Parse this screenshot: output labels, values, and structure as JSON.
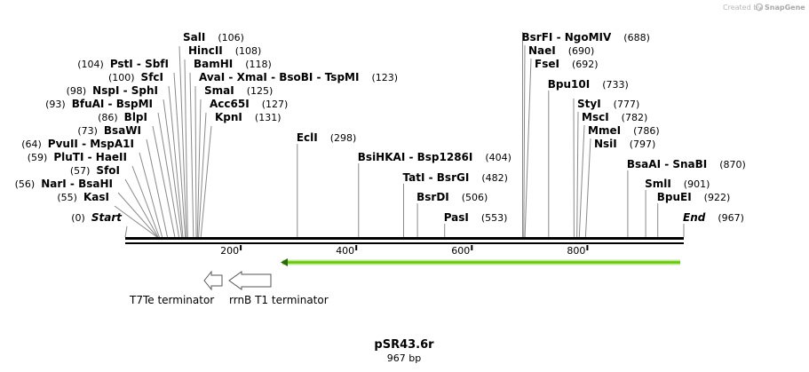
{
  "credit": {
    "prefix": "Created by",
    "brand": "SnapGene"
  },
  "plasmid": {
    "name": "pSR43.6r",
    "length_label": "967 bp",
    "length_bp": 967
  },
  "scale": {
    "ticks": [
      200,
      400,
      600,
      800
    ]
  },
  "cut_sites": [
    {
      "name": "Start",
      "pos": 0,
      "italic": true
    },
    {
      "name": "KasI",
      "pos": 55
    },
    {
      "name": "NarI  - BsaHI",
      "pos": 56
    },
    {
      "name": "SfoI",
      "pos": 57
    },
    {
      "name": "PluTI  - HaeII",
      "pos": 59
    },
    {
      "name": "PvuII  - MspA1I",
      "pos": 64
    },
    {
      "name": "BsaWI",
      "pos": 73
    },
    {
      "name": "BlpI",
      "pos": 86
    },
    {
      "name": "BfuAI  - BspMI",
      "pos": 93
    },
    {
      "name": "NspI  - SphI",
      "pos": 98
    },
    {
      "name": "SfcI",
      "pos": 100
    },
    {
      "name": "PstI  - SbfI",
      "pos": 104
    },
    {
      "name": "SalI",
      "pos": 106
    },
    {
      "name": "HincII",
      "pos": 108
    },
    {
      "name": "BamHI",
      "pos": 118
    },
    {
      "name": "AvaI  - XmaI  - BsoBI  - TspMI",
      "pos": 123
    },
    {
      "name": "SmaI",
      "pos": 125
    },
    {
      "name": "Acc65I",
      "pos": 127
    },
    {
      "name": "KpnI",
      "pos": 131
    },
    {
      "name": "EclI",
      "pos": 298
    },
    {
      "name": "BsiHKAI  - Bsp1286I",
      "pos": 404
    },
    {
      "name": "TatI  - BsrGI",
      "pos": 482
    },
    {
      "name": "BsrDI",
      "pos": 506
    },
    {
      "name": "PasI",
      "pos": 553
    },
    {
      "name": "BsrFI  - NgoMIV",
      "pos": 688
    },
    {
      "name": "NaeI",
      "pos": 690
    },
    {
      "name": "FseI",
      "pos": 692
    },
    {
      "name": "Bpu10I",
      "pos": 733
    },
    {
      "name": "StyI",
      "pos": 777
    },
    {
      "name": "MscI",
      "pos": 782
    },
    {
      "name": "MmeI",
      "pos": 786
    },
    {
      "name": "NsiI",
      "pos": 797
    },
    {
      "name": "BsaAI  - SnaBI",
      "pos": 870
    },
    {
      "name": "SmlI",
      "pos": 901
    },
    {
      "name": "BpuEI",
      "pos": 922
    },
    {
      "name": "End",
      "pos": 967,
      "italic": true
    }
  ],
  "features": [
    {
      "name": "T7Te terminator",
      "color": "#ffffff",
      "direction": "reverse"
    },
    {
      "name": "rrnB T1 terminator",
      "color": "#ffffff",
      "direction": "reverse"
    },
    {
      "name": "green-reverse-arrow",
      "color": "#7bc41c",
      "direction": "reverse"
    }
  ]
}
